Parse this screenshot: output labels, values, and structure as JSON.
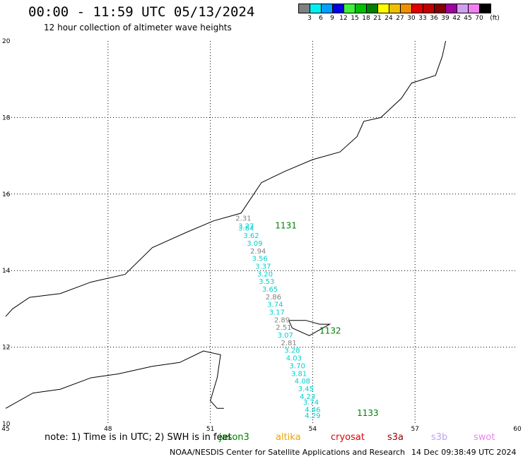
{
  "title": "00:00 - 11:59 UTC 05/13/2024",
  "subtitle": "12 hour collection of altimeter wave heights",
  "scale": {
    "unit": "(ft)",
    "colors": [
      "#808080",
      "#00f0f0",
      "#00a0ff",
      "#0000e0",
      "#40f040",
      "#00c000",
      "#008000",
      "#ffff00",
      "#f0c000",
      "#f09000",
      "#e00000",
      "#c00000",
      "#800000",
      "#a000a0",
      "#d0a0f0",
      "#f080f0",
      "#000000"
    ],
    "labels": [
      "3",
      "6",
      "9",
      "12",
      "15",
      "18",
      "21",
      "24",
      "27",
      "30",
      "33",
      "36",
      "39",
      "42",
      "45",
      "70"
    ]
  },
  "axes": {
    "x_ticks": [
      "45",
      "48",
      "51",
      "54",
      "57",
      "60"
    ],
    "y_ticks": [
      "20",
      "18",
      "16",
      "14",
      "12",
      "10"
    ],
    "x_tick_values": [
      45,
      48,
      51,
      54,
      57,
      60
    ],
    "y_tick_values": [
      20,
      18,
      16,
      14,
      12,
      10
    ],
    "x_range": [
      45,
      60
    ],
    "y_range": [
      10,
      20
    ]
  },
  "coastline": {
    "arabia": [
      [
        45,
        12.8
      ],
      [
        45.2,
        13.0
      ],
      [
        45.7,
        13.3
      ],
      [
        46.6,
        13.4
      ],
      [
        47.5,
        13.7
      ],
      [
        48.5,
        13.9
      ],
      [
        49.3,
        14.6
      ],
      [
        50.3,
        15.0
      ],
      [
        51.1,
        15.3
      ],
      [
        51.9,
        15.5
      ],
      [
        52.2,
        15.9
      ],
      [
        52.5,
        16.3
      ],
      [
        53.2,
        16.6
      ],
      [
        54.0,
        16.9
      ],
      [
        54.8,
        17.1
      ],
      [
        55.3,
        17.5
      ],
      [
        55.5,
        17.9
      ],
      [
        56.0,
        18.0
      ],
      [
        56.6,
        18.5
      ],
      [
        56.9,
        18.9
      ],
      [
        57.6,
        19.1
      ],
      [
        57.8,
        19.6
      ],
      [
        57.9,
        20.0
      ]
    ],
    "somalia": [
      [
        45,
        10.4
      ],
      [
        45.8,
        10.8
      ],
      [
        46.6,
        10.9
      ],
      [
        47.5,
        11.2
      ],
      [
        48.3,
        11.3
      ],
      [
        49.3,
        11.5
      ],
      [
        50.1,
        11.6
      ],
      [
        50.8,
        11.9
      ],
      [
        51.3,
        11.8
      ],
      [
        51.2,
        11.2
      ],
      [
        51.0,
        10.6
      ],
      [
        51.2,
        10.4
      ],
      [
        51.4,
        10.4
      ]
    ],
    "socotra": [
      [
        53.3,
        12.7
      ],
      [
        53.8,
        12.7
      ],
      [
        54.2,
        12.6
      ],
      [
        54.5,
        12.6
      ],
      [
        53.9,
        12.3
      ],
      [
        53.4,
        12.5
      ],
      [
        53.3,
        12.7
      ]
    ]
  },
  "annotations": [
    {
      "text": "1131",
      "lon": 52.9,
      "lat": 15.1,
      "color": "#008000"
    },
    {
      "text": "1132",
      "lon": 54.2,
      "lat": 12.35,
      "color": "#008000"
    },
    {
      "text": "1133",
      "lon": 55.3,
      "lat": 10.2,
      "color": "#008000"
    }
  ],
  "wave_heights": [
    {
      "v": "2.31",
      "lon": 51.97,
      "lat": 15.3,
      "c": "#808080"
    },
    {
      "v": "3.27",
      "lon": 52.05,
      "lat": 15.1,
      "c": "#00d0d0"
    },
    {
      "v": "3.84",
      "lon": 52.05,
      "lat": 15.05,
      "c": "#00d0d0"
    },
    {
      "v": "3.62",
      "lon": 52.2,
      "lat": 14.85,
      "c": "#00d0d0"
    },
    {
      "v": "3.09",
      "lon": 52.3,
      "lat": 14.65,
      "c": "#00d0d0"
    },
    {
      "v": "2.94",
      "lon": 52.4,
      "lat": 14.45,
      "c": "#808080"
    },
    {
      "v": "3.56",
      "lon": 52.45,
      "lat": 14.25,
      "c": "#00d0d0"
    },
    {
      "v": "3.37",
      "lon": 52.55,
      "lat": 14.05,
      "c": "#00d0d0"
    },
    {
      "v": "3.20",
      "lon": 52.6,
      "lat": 13.85,
      "c": "#00d0d0"
    },
    {
      "v": "3.53",
      "lon": 52.65,
      "lat": 13.65,
      "c": "#00d0d0"
    },
    {
      "v": "3.65",
      "lon": 52.75,
      "lat": 13.45,
      "c": "#00d0d0"
    },
    {
      "v": "2.86",
      "lon": 52.85,
      "lat": 13.25,
      "c": "#808080"
    },
    {
      "v": "3.74",
      "lon": 52.9,
      "lat": 13.05,
      "c": "#00d0d0"
    },
    {
      "v": "3.17",
      "lon": 52.95,
      "lat": 12.85,
      "c": "#00d0d0"
    },
    {
      "v": "2.89",
      "lon": 53.1,
      "lat": 12.65,
      "c": "#808080"
    },
    {
      "v": "2.51",
      "lon": 53.15,
      "lat": 12.45,
      "c": "#808080"
    },
    {
      "v": "3.07",
      "lon": 53.2,
      "lat": 12.25,
      "c": "#00d0d0"
    },
    {
      "v": "2.81",
      "lon": 53.3,
      "lat": 12.05,
      "c": "#808080"
    },
    {
      "v": "3.28",
      "lon": 53.4,
      "lat": 11.85,
      "c": "#00d0d0"
    },
    {
      "v": "4.03",
      "lon": 53.45,
      "lat": 11.65,
      "c": "#00d0d0"
    },
    {
      "v": "3.70",
      "lon": 53.55,
      "lat": 11.45,
      "c": "#00d0d0"
    },
    {
      "v": "3.81",
      "lon": 53.6,
      "lat": 11.25,
      "c": "#00d0d0"
    },
    {
      "v": "4.08",
      "lon": 53.7,
      "lat": 11.05,
      "c": "#00d0d0"
    },
    {
      "v": "3.45",
      "lon": 53.8,
      "lat": 10.85,
      "c": "#00d0d0"
    },
    {
      "v": "4.23",
      "lon": 53.85,
      "lat": 10.65,
      "c": "#00d0d0"
    },
    {
      "v": "3.74",
      "lon": 53.95,
      "lat": 10.5,
      "c": "#00d0d0"
    },
    {
      "v": "4.46",
      "lon": 54.0,
      "lat": 10.3,
      "c": "#00d0d0"
    },
    {
      "v": "4.29",
      "lon": 54.0,
      "lat": 10.15,
      "c": "#00d0d0"
    }
  ],
  "footer": {
    "note": "note: 1) Time is in UTC; 2) SWH is in feet",
    "missions": [
      {
        "label": "jason3",
        "color": "#008000"
      },
      {
        "label": "altika",
        "color": "#f0a000"
      },
      {
        "label": "cryosat",
        "color": "#e00000"
      },
      {
        "label": "s3a",
        "color": "#a00000"
      },
      {
        "label": "s3b",
        "color": "#c0a0f0"
      },
      {
        "label": "swot",
        "color": "#f080f0"
      }
    ],
    "credit": "NOAA/NESDIS Center for Satellite Applications and Research",
    "timestamp": "14 Dec 09:38:49 UTC 2024"
  }
}
